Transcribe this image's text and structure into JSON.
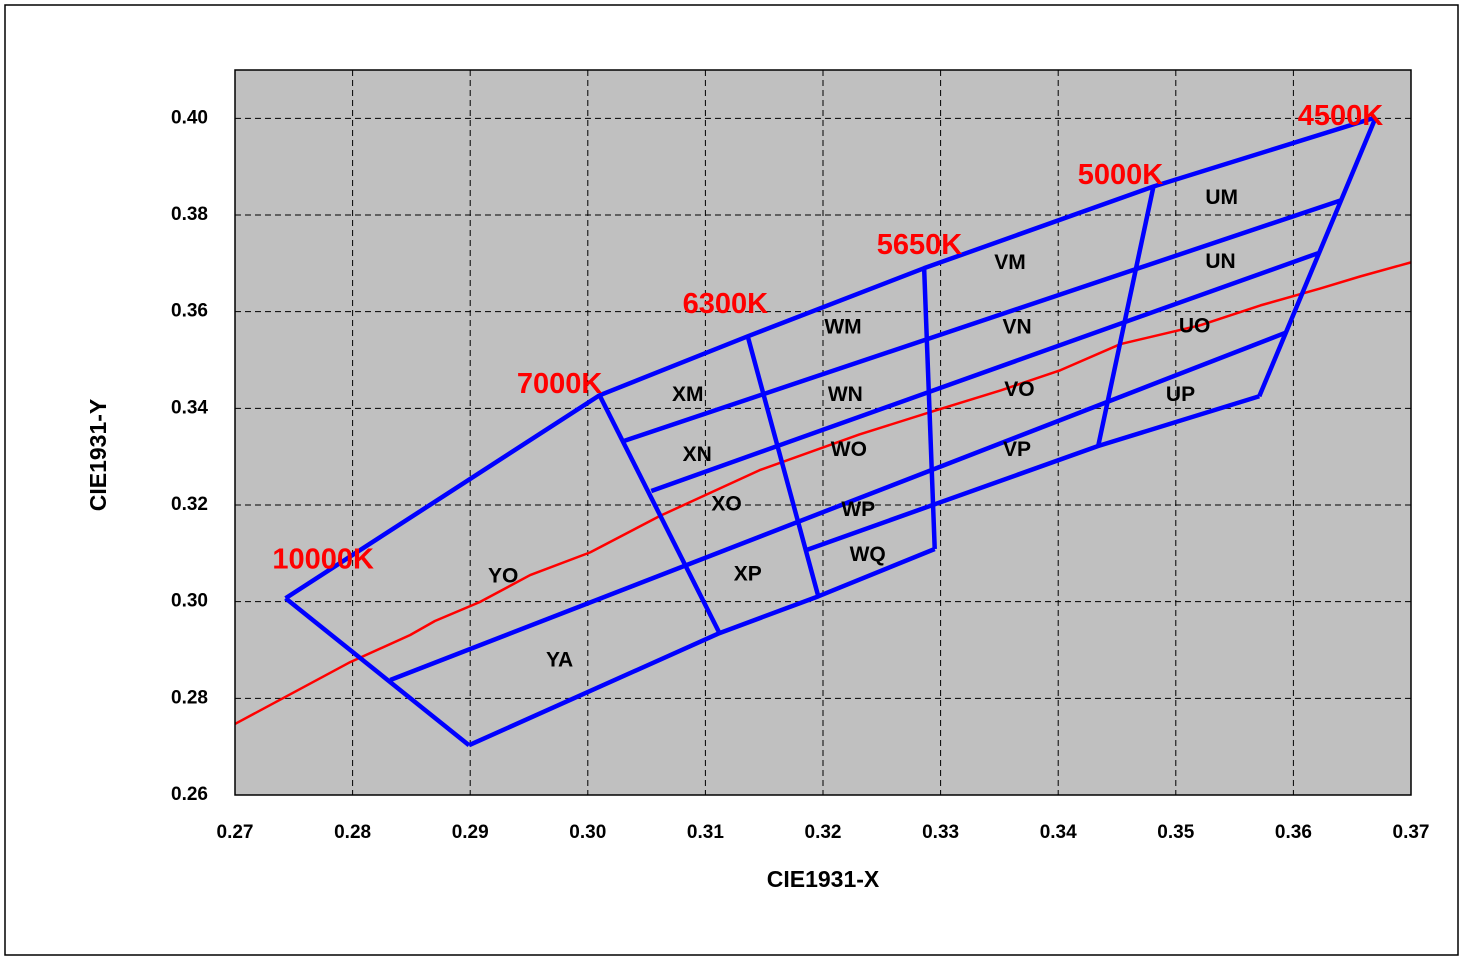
{
  "chart_data": {
    "type": "line",
    "x_label": "CIE1931-X",
    "y_label": "CIE1931-Y",
    "xlim": [
      0.27,
      0.37
    ],
    "ylim": [
      0.26,
      0.41
    ],
    "xticks": [
      0.27,
      0.28,
      0.29,
      {
        "value": 0.3,
        "label": "0.30"
      },
      0.31,
      0.32,
      0.33,
      0.34,
      0.35,
      0.36,
      0.37
    ],
    "yticks": [
      0.26,
      0.28,
      {
        "value": 0.3,
        "label": "0.30"
      },
      0.32,
      0.34,
      0.36,
      0.38,
      {
        "value": 0.4,
        "label": "0.40"
      }
    ],
    "grid": true,
    "plot_background": "#c0c0c0",
    "series": [
      {
        "color": "#ff0000",
        "x": [
          0.27,
          0.2798,
          0.2849,
          0.287,
          0.2908,
          0.2951,
          0.3002,
          0.3061,
          0.3146,
          0.3231,
          0.3291,
          0.3351,
          0.3402,
          0.3453,
          0.3521,
          0.3572,
          0.3623,
          0.3657,
          0.37
        ],
        "y": [
          0.2747,
          0.2875,
          0.2931,
          0.296,
          0.2999,
          0.3055,
          0.3102,
          0.3177,
          0.3272,
          0.3346,
          0.3392,
          0.3437,
          0.3479,
          0.3533,
          0.3572,
          0.3613,
          0.3648,
          0.3673,
          0.3702
        ]
      },
      {
        "color": "#0000ff",
        "x": [
          0.2743,
          0.301,
          0.3136,
          0.3286,
          0.3481,
          0.367
        ],
        "y": [
          0.3007,
          0.3427,
          0.3549,
          0.369,
          0.3859,
          0.4002
        ]
      },
      {
        "color": "#0000ff",
        "x": [
          0.303,
          0.364
        ],
        "y": [
          0.3332,
          0.383
        ]
      },
      {
        "color": "#0000ff",
        "x": [
          0.3054,
          0.3621
        ],
        "y": [
          0.3229,
          0.3721
        ]
      },
      {
        "color": "#0000ff",
        "x": [
          0.2832,
          0.3594
        ],
        "y": [
          0.2838,
          0.3557
        ]
      },
      {
        "color": "#0000ff",
        "x": [
          0.3186,
          0.3434,
          0.3571
        ],
        "y": [
          0.3107,
          0.3322,
          0.3425
        ]
      },
      {
        "color": "#0000ff",
        "x": [
          0.2899,
          0.3112,
          0.3196,
          0.3295
        ],
        "y": [
          0.2703,
          0.2935,
          0.3011,
          0.3109
        ]
      },
      {
        "color": "#0000ff",
        "x": [
          0.2743,
          0.2899
        ],
        "y": [
          0.3007,
          0.2703
        ]
      },
      {
        "color": "#0000ff",
        "x": [
          0.301,
          0.3112
        ],
        "y": [
          0.3427,
          0.2935
        ]
      },
      {
        "color": "#0000ff",
        "x": [
          0.3136,
          0.3196
        ],
        "y": [
          0.3549,
          0.3011
        ]
      },
      {
        "color": "#0000ff",
        "x": [
          0.3286,
          0.3295
        ],
        "y": [
          0.369,
          0.3109
        ]
      },
      {
        "color": "#0000ff",
        "x": [
          0.3481,
          0.3434
        ],
        "y": [
          0.3859,
          0.3322
        ]
      },
      {
        "color": "#0000ff",
        "x": [
          0.367,
          0.3571
        ],
        "y": [
          0.4002,
          0.3425
        ]
      }
    ],
    "annotations": [
      {
        "text": "10000K",
        "x": 0.2775,
        "y": 0.3084,
        "color": "#ff0000"
      },
      {
        "text": "7000K",
        "x": 0.2976,
        "y": 0.3448,
        "color": "#ff0000"
      },
      {
        "text": "6300K",
        "x": 0.3117,
        "y": 0.3613,
        "color": "#ff0000"
      },
      {
        "text": "5650K",
        "x": 0.3282,
        "y": 0.3735,
        "color": "#ff0000"
      },
      {
        "text": "5000K",
        "x": 0.3453,
        "y": 0.388,
        "color": "#ff0000"
      },
      {
        "text": "4500K",
        "x": 0.364,
        "y": 0.4002,
        "color": "#ff0000"
      },
      {
        "text": "XM",
        "x": 0.3085,
        "y": 0.3427,
        "color": "#000000"
      },
      {
        "text": "XN",
        "x": 0.3093,
        "y": 0.3303,
        "color": "#000000"
      },
      {
        "text": "XO",
        "x": 0.3118,
        "y": 0.32,
        "color": "#000000"
      },
      {
        "text": "XP",
        "x": 0.3136,
        "y": 0.3055,
        "color": "#000000"
      },
      {
        "text": "YO",
        "x": 0.2928,
        "y": 0.3051,
        "color": "#000000"
      },
      {
        "text": "YA",
        "x": 0.2976,
        "y": 0.2877,
        "color": "#000000"
      },
      {
        "text": "WM",
        "x": 0.3217,
        "y": 0.3566,
        "color": "#000000"
      },
      {
        "text": "WN",
        "x": 0.3219,
        "y": 0.3427,
        "color": "#000000"
      },
      {
        "text": "WO",
        "x": 0.3222,
        "y": 0.3313,
        "color": "#000000"
      },
      {
        "text": "WP",
        "x": 0.323,
        "y": 0.3189,
        "color": "#000000"
      },
      {
        "text": "WQ",
        "x": 0.3238,
        "y": 0.3096,
        "color": "#000000"
      },
      {
        "text": "VM",
        "x": 0.3359,
        "y": 0.37,
        "color": "#000000"
      },
      {
        "text": "VN",
        "x": 0.3365,
        "y": 0.3566,
        "color": "#000000"
      },
      {
        "text": "VO",
        "x": 0.3367,
        "y": 0.3437,
        "color": "#000000"
      },
      {
        "text": "VP",
        "x": 0.3365,
        "y": 0.3313,
        "color": "#000000"
      },
      {
        "text": "UM",
        "x": 0.3539,
        "y": 0.3834,
        "color": "#000000"
      },
      {
        "text": "UN",
        "x": 0.3538,
        "y": 0.3702,
        "color": "#000000"
      },
      {
        "text": "UO",
        "x": 0.3516,
        "y": 0.3568,
        "color": "#000000"
      },
      {
        "text": "UP",
        "x": 0.3504,
        "y": 0.3427,
        "color": "#000000"
      }
    ]
  }
}
